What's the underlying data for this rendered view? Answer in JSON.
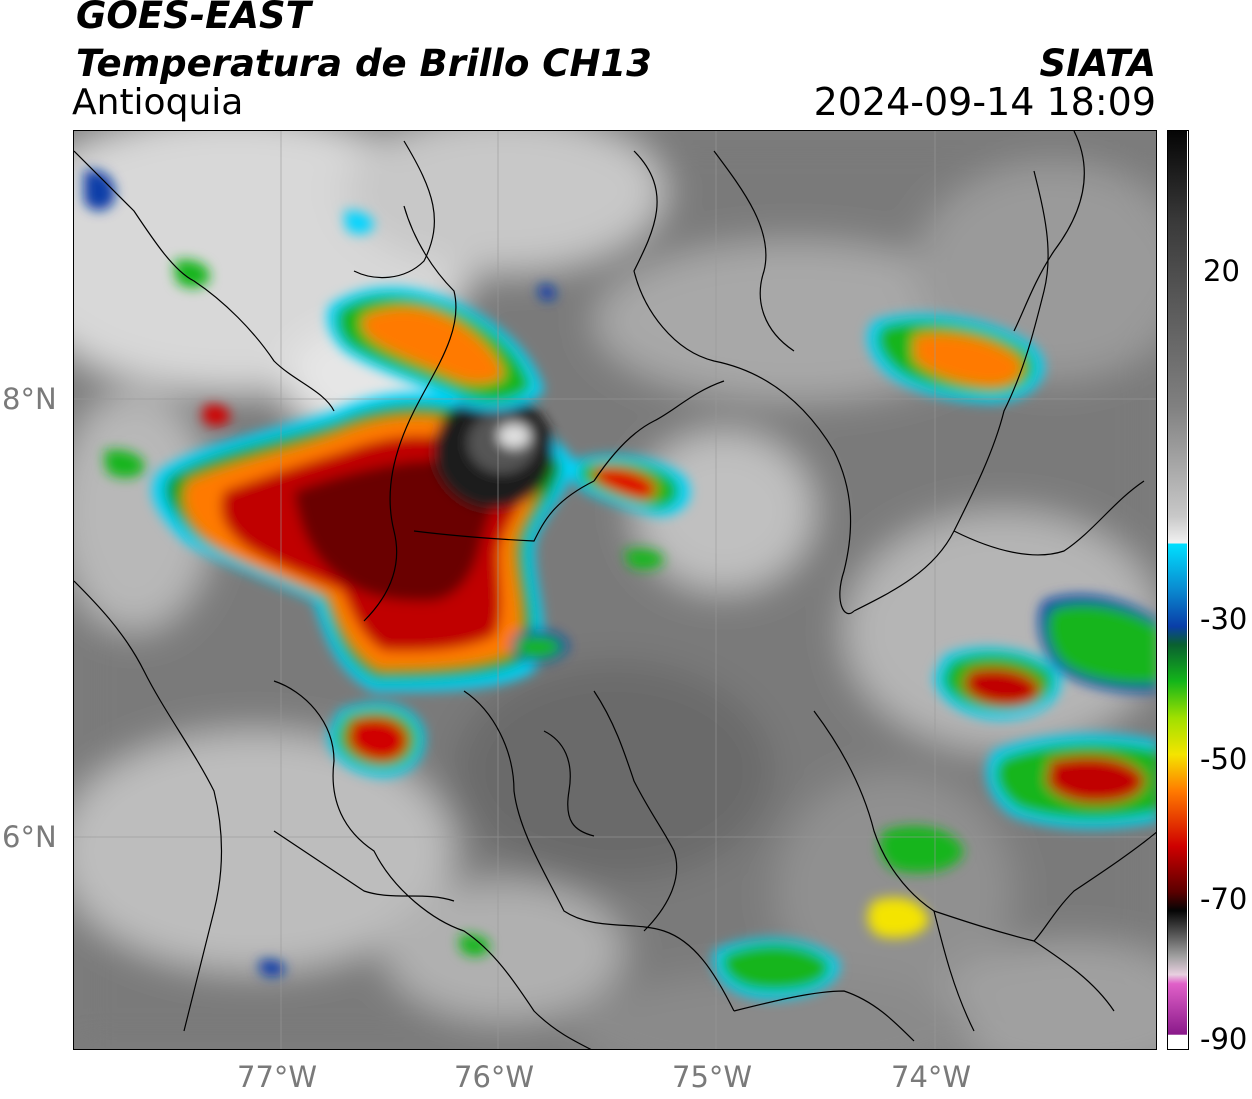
{
  "title_line1": "GOES-EAST",
  "title_line2": "Temperatura de Brillo CH13",
  "region": "Antioquia",
  "agency": "SIATA",
  "datetime": "2024-09-14 18:09",
  "lat_labels": [
    "8°N",
    "6°N"
  ],
  "lon_labels": [
    "77°W",
    "76°W",
    "75°W",
    "74°W"
  ],
  "colorbar_labels": [
    "20",
    "-30",
    "-50",
    "-70",
    "-90"
  ],
  "colorbar": {
    "white": "#f2f2f2",
    "cyan": "#00e0ff",
    "blue": "#0a3ea8",
    "green": "#13b51a",
    "yellow": "#f4e400",
    "orange": "#ff7a00",
    "red": "#cf0000",
    "dark_red": "#5a0000",
    "black": "#050505",
    "pink": "#e060c8",
    "purple": "#8a1a8a"
  }
}
